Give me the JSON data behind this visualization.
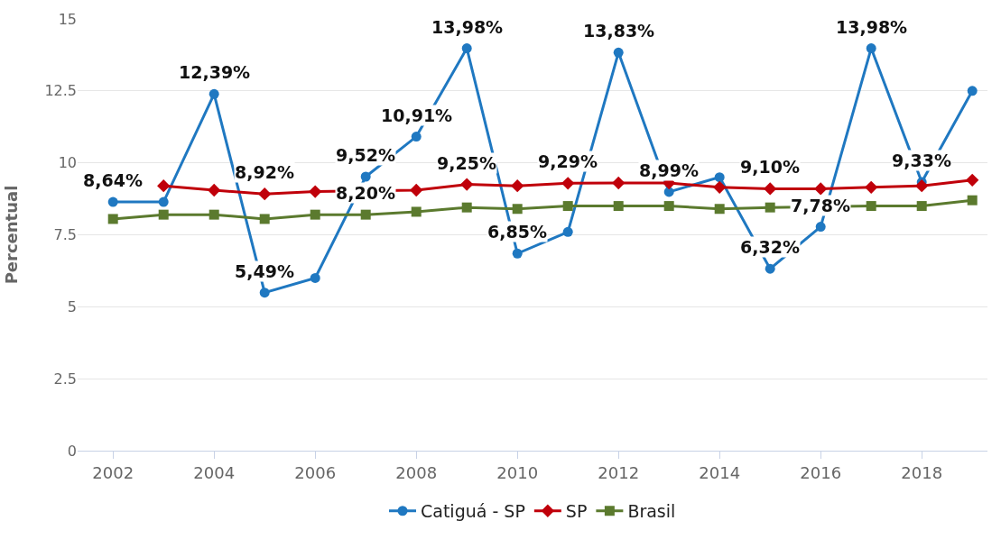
{
  "chart_data": {
    "type": "line",
    "ylabel": "Percentual",
    "x": [
      2002,
      2003,
      2004,
      2005,
      2006,
      2007,
      2008,
      2009,
      2010,
      2011,
      2012,
      2013,
      2014,
      2015,
      2016,
      2017,
      2018,
      2019
    ],
    "series": [
      {
        "name": "Catiguá - SP",
        "color": "#1f78c1",
        "marker": "circle",
        "values": [
          8.64,
          8.64,
          12.39,
          5.49,
          6.0,
          9.52,
          10.91,
          13.98,
          6.85,
          7.6,
          13.83,
          8.99,
          9.5,
          6.32,
          7.78,
          13.98,
          9.33,
          12.5
        ],
        "value_labels": [
          "8,64%",
          null,
          "12,39%",
          "5,49%",
          null,
          "9,52%",
          "10,91%",
          "13,98%",
          "6,85%",
          null,
          "13,83%",
          "8,99%",
          null,
          "6,32%",
          "7,78%",
          "13,98%",
          "9,33%",
          null
        ]
      },
      {
        "name": "SP",
        "color": "#c0000a",
        "marker": "diamond",
        "values": [
          null,
          9.2,
          9.05,
          8.92,
          9.0,
          null,
          9.05,
          9.25,
          9.2,
          9.29,
          9.3,
          9.3,
          9.15,
          9.1,
          9.1,
          9.15,
          9.2,
          9.4
        ],
        "value_labels": [
          null,
          null,
          null,
          "8,92%",
          null,
          null,
          null,
          "9,25%",
          null,
          "9,29%",
          null,
          null,
          null,
          "9,10%",
          null,
          null,
          null,
          null
        ]
      },
      {
        "name": "Brasil",
        "color": "#5b7a2e",
        "marker": "square",
        "values": [
          8.05,
          8.2,
          8.2,
          8.05,
          8.2,
          8.2,
          8.3,
          8.45,
          8.4,
          8.5,
          8.5,
          8.5,
          8.4,
          8.45,
          null,
          8.5,
          8.5,
          8.7
        ],
        "value_labels": [
          null,
          null,
          null,
          null,
          null,
          "8,20%",
          null,
          null,
          null,
          null,
          null,
          null,
          null,
          null,
          null,
          null,
          null,
          null
        ]
      }
    ],
    "xlim": [
      2001.3,
      2019.3
    ],
    "xticks": [
      2002,
      2004,
      2006,
      2008,
      2010,
      2012,
      2014,
      2016,
      2018
    ],
    "ylim": [
      0,
      15
    ],
    "yticks": [
      0,
      2.5,
      5,
      7.5,
      10,
      12.5,
      15
    ],
    "grid": "y",
    "legend": "bottom",
    "line_style": "solid"
  }
}
